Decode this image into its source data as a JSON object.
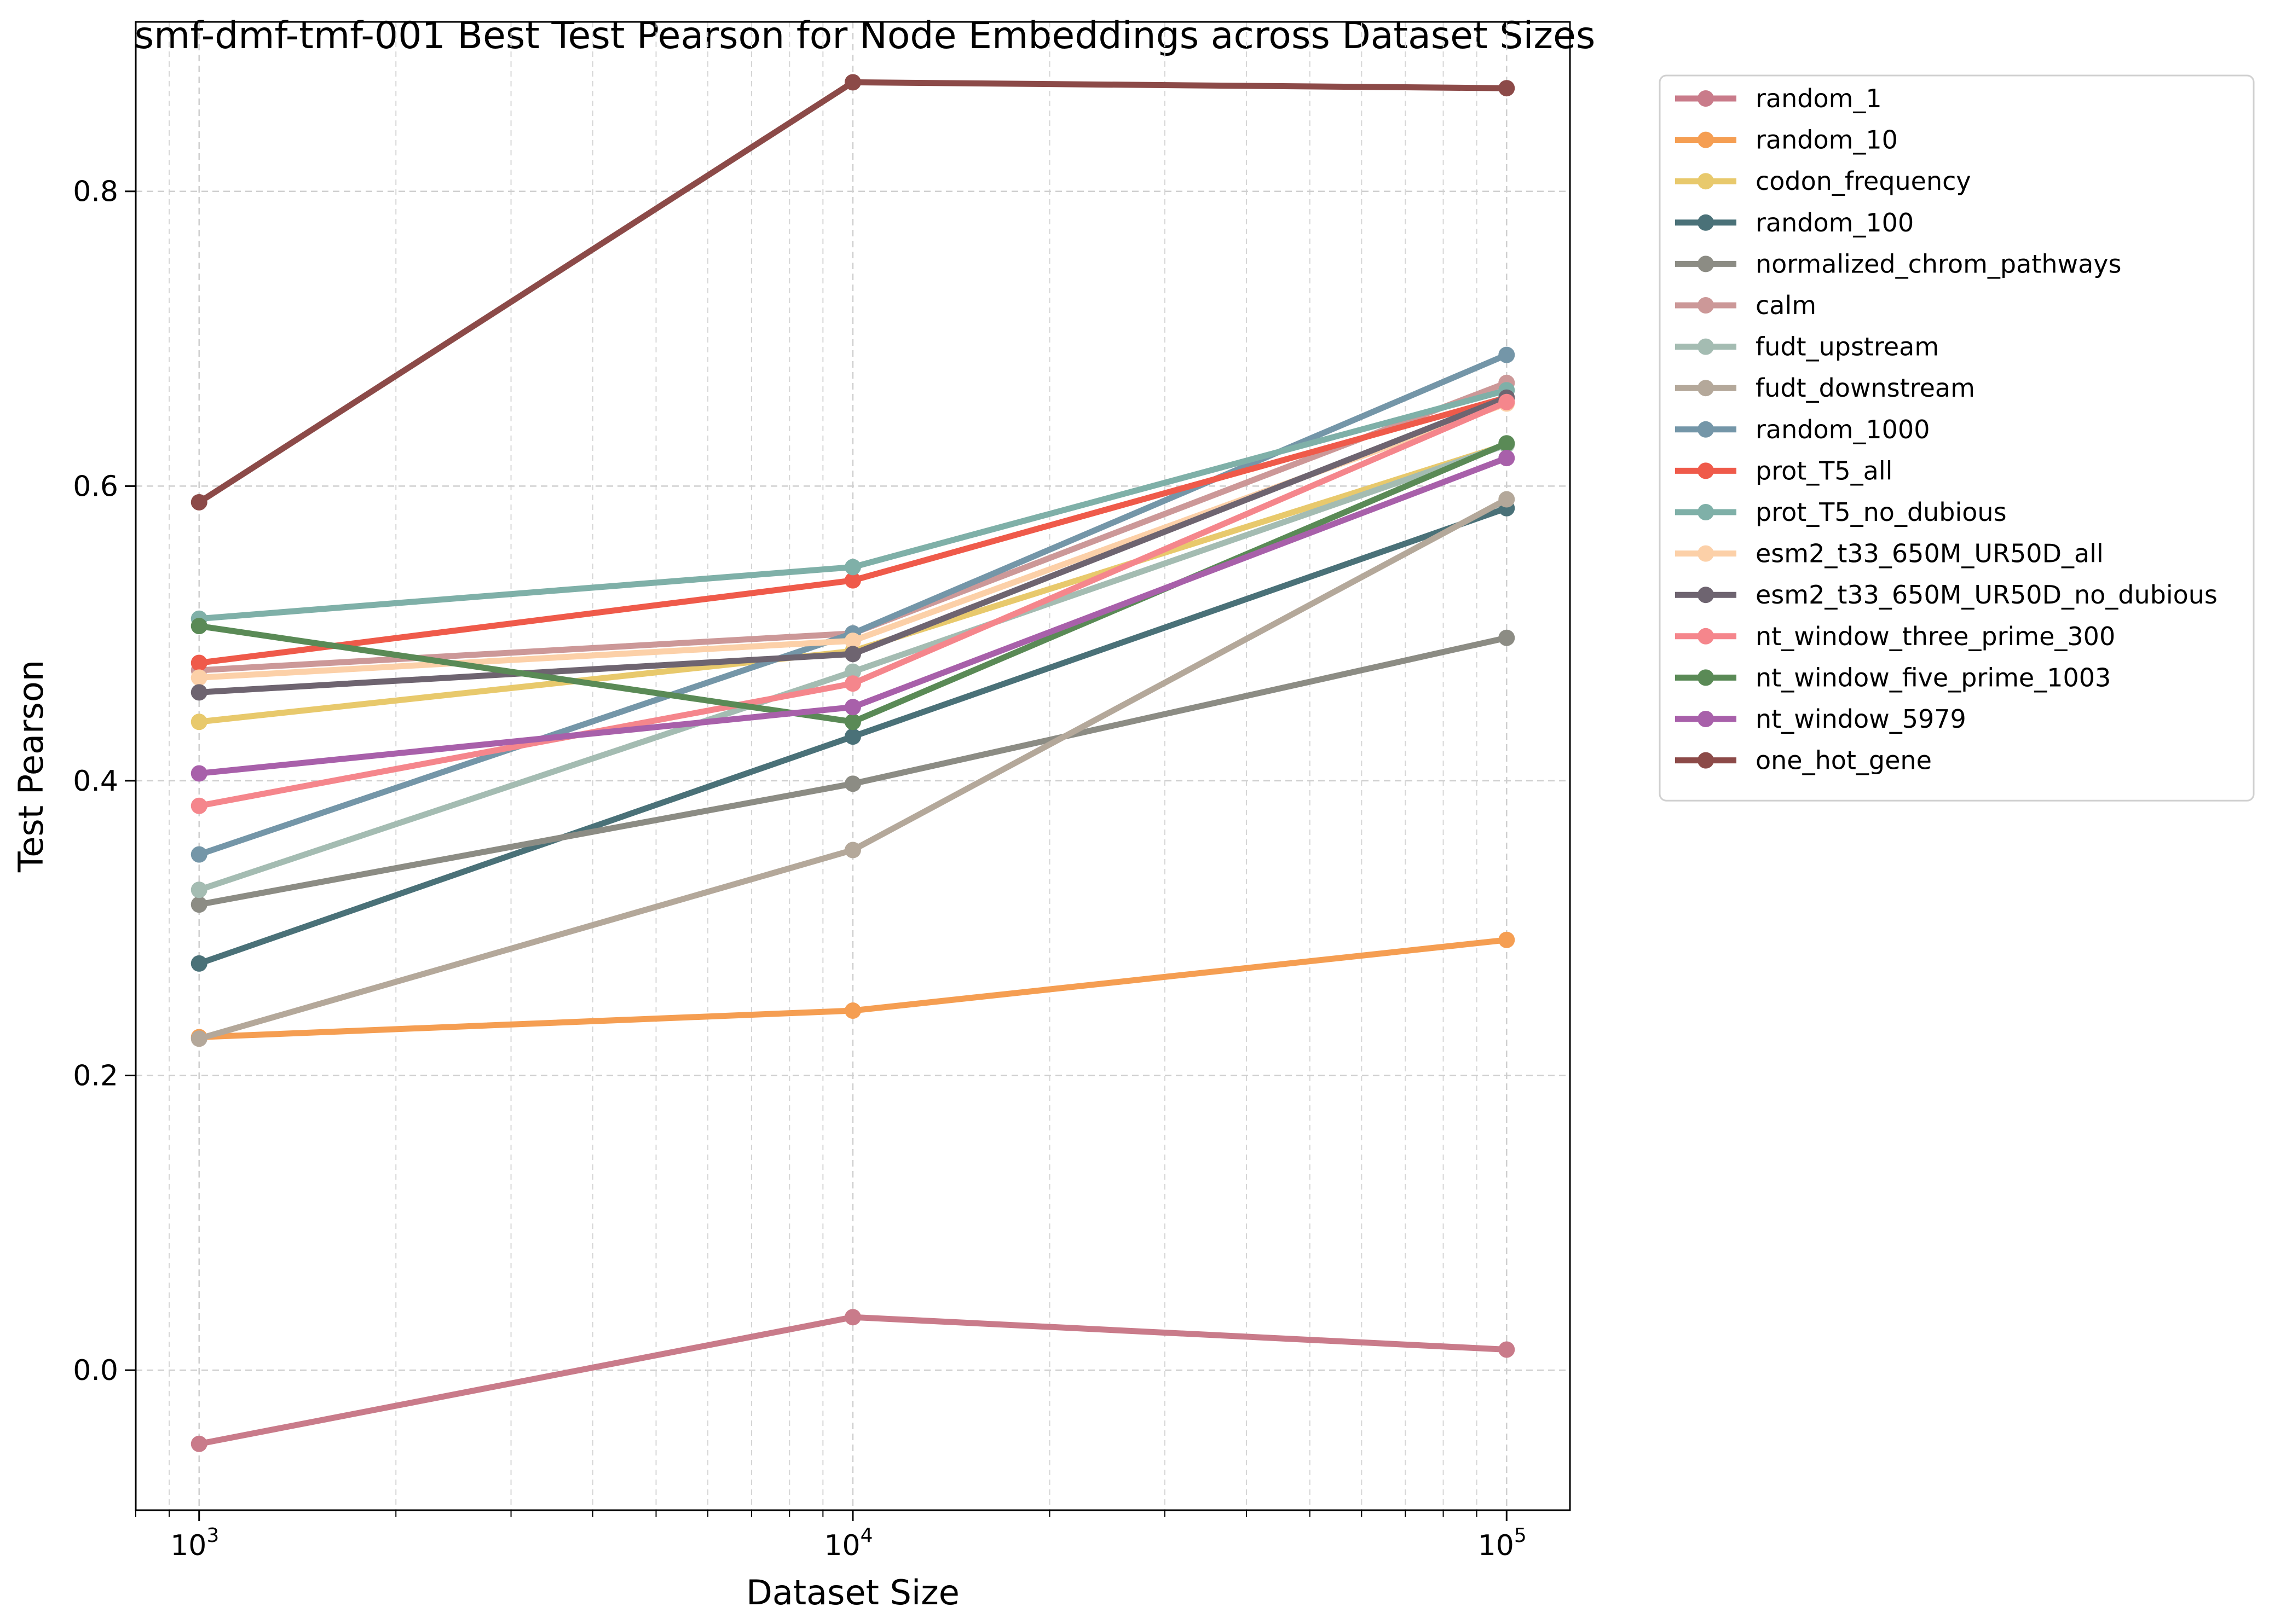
{
  "chart_data": {
    "type": "line",
    "title": "smf-dmf-tmf-001 Best Test Pearson for Node Embeddings across Dataset Sizes",
    "xlabel": "Dataset Size",
    "ylabel": "Test Pearson",
    "xscale": "log",
    "xlim": [
      800,
      125000
    ],
    "ylim": [
      -0.095,
      0.915
    ],
    "x": [
      1000,
      10000,
      100000
    ],
    "xticks": [
      {
        "value": 1000,
        "base": "10",
        "exp": "3"
      },
      {
        "value": 10000,
        "base": "10",
        "exp": "4"
      },
      {
        "value": 100000,
        "base": "10",
        "exp": "5"
      }
    ],
    "yticks": [
      {
        "value": 0.0,
        "label": "0.0"
      },
      {
        "value": 0.2,
        "label": "0.2"
      },
      {
        "value": 0.4,
        "label": "0.4"
      },
      {
        "value": 0.6,
        "label": "0.6"
      },
      {
        "value": 0.8,
        "label": "0.8"
      }
    ],
    "grid": true,
    "legend_position": "outside-right",
    "series": [
      {
        "name": "random_1",
        "color": "#c97b8a",
        "values": [
          -0.05,
          0.036,
          0.014
        ]
      },
      {
        "name": "random_10",
        "color": "#f59e52",
        "values": [
          0.226,
          0.244,
          0.292
        ]
      },
      {
        "name": "codon_frequency",
        "color": "#e8c96c",
        "values": [
          0.44,
          0.488,
          0.628
        ]
      },
      {
        "name": "random_100",
        "color": "#4a7178",
        "values": [
          0.276,
          0.43,
          0.585
        ]
      },
      {
        "name": "normalized_chrom_pathways",
        "color": "#8c8c84",
        "values": [
          0.316,
          0.398,
          0.497
        ]
      },
      {
        "name": "calm",
        "color": "#cc9898",
        "values": [
          0.475,
          0.5,
          0.67
        ]
      },
      {
        "name": "fudt_upstream",
        "color": "#a4bcb2",
        "values": [
          0.326,
          0.474,
          0.628
        ]
      },
      {
        "name": "fudt_downstream",
        "color": "#b4a89a",
        "values": [
          0.225,
          0.353,
          0.591
        ]
      },
      {
        "name": "random_1000",
        "color": "#7496a8",
        "values": [
          0.35,
          0.5,
          0.689
        ]
      },
      {
        "name": "prot_T5_all",
        "color": "#ef5a4a",
        "values": [
          0.48,
          0.536,
          0.66
        ]
      },
      {
        "name": "prot_T5_no_dubious",
        "color": "#7fb0a8",
        "values": [
          0.51,
          0.545,
          0.665
        ]
      },
      {
        "name": "esm2_t33_650M_UR50D_all",
        "color": "#fcd0a8",
        "values": [
          0.47,
          0.495,
          0.656
        ]
      },
      {
        "name": "esm2_t33_650M_UR50D_no_dubious",
        "color": "#6e6470",
        "values": [
          0.46,
          0.486,
          0.66
        ]
      },
      {
        "name": "nt_window_three_prime_300",
        "color": "#f5868c",
        "values": [
          0.383,
          0.466,
          0.657
        ]
      },
      {
        "name": "nt_window_five_prime_1003",
        "color": "#5a8a56",
        "values": [
          0.505,
          0.44,
          0.629
        ]
      },
      {
        "name": "nt_window_5979",
        "color": "#a860aa",
        "values": [
          0.405,
          0.45,
          0.619
        ]
      },
      {
        "name": "one_hot_gene",
        "color": "#8c4a48",
        "values": [
          0.589,
          0.874,
          0.87
        ]
      }
    ]
  }
}
